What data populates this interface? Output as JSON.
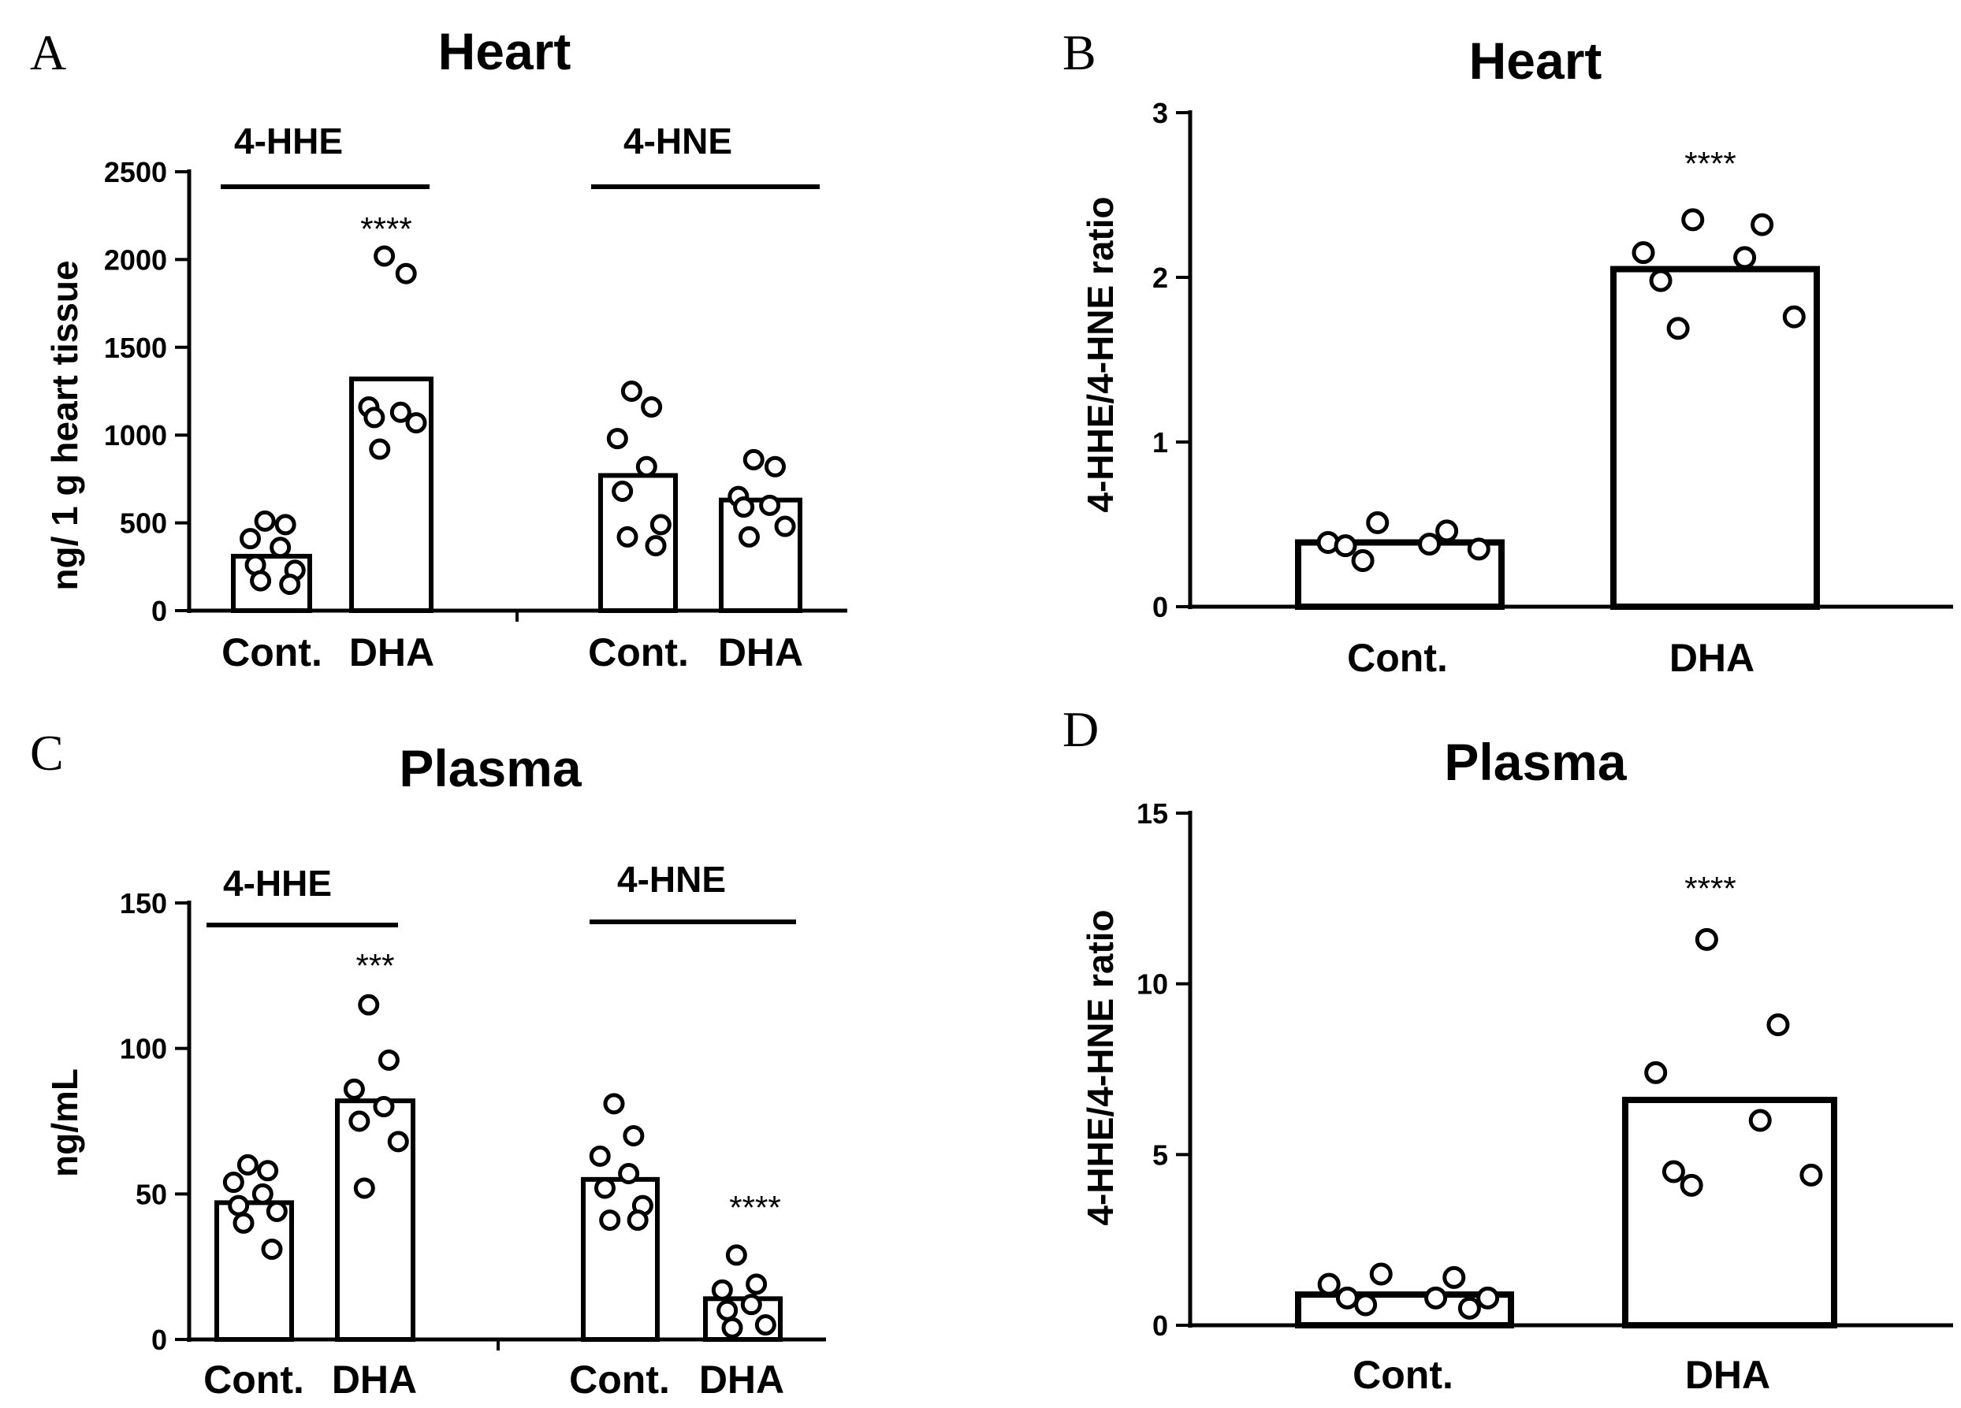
{
  "chart_data": [
    {
      "id": "A",
      "panel_label": "A",
      "type": "bar",
      "title": "Heart",
      "ylabel": "ng/ 1 g heart tissue",
      "ylim": [
        0,
        2500
      ],
      "yticks": [
        0,
        500,
        1000,
        1500,
        2000,
        2500
      ],
      "ytick_labels": [
        "0",
        "500",
        "1000",
        "1500",
        "2000",
        "2500"
      ],
      "categories": [
        "Cont.",
        "DHA",
        "Cont.",
        "DHA"
      ],
      "groups": [
        {
          "label": "4-HHE",
          "bars": [
            0,
            1
          ]
        },
        {
          "label": "4-HNE",
          "bars": [
            2,
            3
          ]
        }
      ],
      "values": [
        310,
        1320,
        770,
        630
      ],
      "points": [
        [
          510,
          490,
          410,
          360,
          260,
          230,
          170,
          150
        ],
        [
          2020,
          1920,
          1160,
          1130,
          1100,
          1070,
          920
        ],
        [
          1250,
          1160,
          980,
          820,
          680,
          490,
          420,
          370
        ],
        [
          860,
          820,
          650,
          600,
          590,
          480,
          420
        ]
      ],
      "significance": [
        "",
        "****",
        "",
        ""
      ]
    },
    {
      "id": "B",
      "panel_label": "B",
      "type": "bar",
      "title": "Heart",
      "ylabel": "4-HHE/4-HNE ratio",
      "ylim": [
        0,
        3
      ],
      "yticks": [
        0,
        1,
        2,
        3
      ],
      "ytick_labels": [
        "0",
        "1",
        "2",
        "3"
      ],
      "categories": [
        "Cont.",
        "DHA"
      ],
      "values": [
        0.39,
        2.05
      ],
      "points": [
        [
          0.51,
          0.46,
          0.39,
          0.38,
          0.37,
          0.35,
          0.28
        ],
        [
          2.35,
          2.32,
          2.15,
          2.12,
          1.98,
          1.76,
          1.69
        ]
      ],
      "significance": [
        "",
        "****"
      ]
    },
    {
      "id": "C",
      "panel_label": "C",
      "type": "bar",
      "title": "Plasma",
      "ylabel": "ng/mL",
      "ylim": [
        0,
        150
      ],
      "yticks": [
        0,
        50,
        100,
        150
      ],
      "ytick_labels": [
        "0",
        "50",
        "100",
        "150"
      ],
      "categories": [
        "Cont.",
        "DHA",
        "Cont.",
        "DHA"
      ],
      "groups": [
        {
          "label": "4-HHE",
          "bars": [
            0,
            1
          ]
        },
        {
          "label": "4-HNE",
          "bars": [
            2,
            3
          ]
        }
      ],
      "values": [
        47,
        82,
        55,
        14
      ],
      "points": [
        [
          60,
          58,
          54,
          50,
          46,
          44,
          40,
          31
        ],
        [
          115,
          96,
          86,
          80,
          75,
          68,
          52
        ],
        [
          81,
          70,
          63,
          57,
          52,
          46,
          41,
          41
        ],
        [
          29,
          19,
          17,
          12,
          10,
          5,
          4
        ]
      ],
      "significance": [
        "",
        "***",
        "",
        "****"
      ]
    },
    {
      "id": "D",
      "panel_label": "D",
      "type": "bar",
      "title": "Plasma",
      "ylabel": "4-HHE/4-HNE ratio",
      "ylim": [
        0,
        15
      ],
      "yticks": [
        0,
        5,
        10,
        15
      ],
      "ytick_labels": [
        "0",
        "5",
        "10",
        "15"
      ],
      "categories": [
        "Cont.",
        "DHA"
      ],
      "values": [
        0.9,
        6.6
      ],
      "points": [
        [
          1.5,
          1.4,
          1.2,
          0.8,
          0.8,
          0.8,
          0.6,
          0.5
        ],
        [
          11.3,
          8.8,
          7.4,
          6.0,
          4.5,
          4.4,
          4.1
        ]
      ],
      "significance": [
        "",
        "****"
      ]
    }
  ]
}
